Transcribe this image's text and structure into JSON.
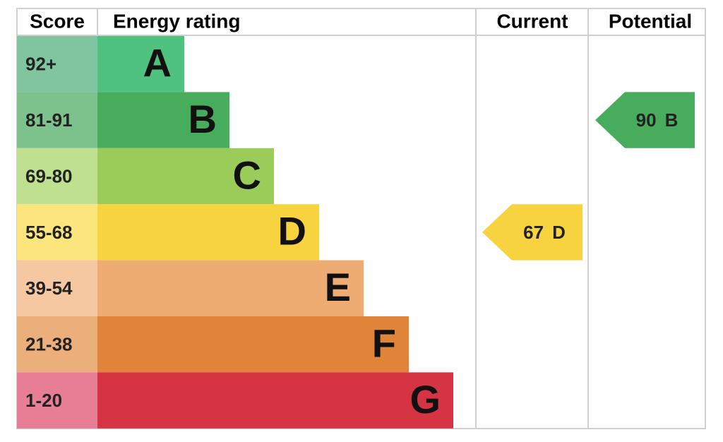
{
  "header": {
    "score": "Score",
    "rating": "Energy rating",
    "current": "Current",
    "potential": "Potential"
  },
  "rows": [
    {
      "score": "92+",
      "band": "A",
      "score_color": "#7fc6a0",
      "color": "#4fc27f"
    },
    {
      "score": "81-91",
      "band": "B",
      "score_color": "#7dc28c",
      "color": "#47ad5c"
    },
    {
      "score": "69-80",
      "band": "C",
      "score_color": "#bfe08f",
      "color": "#9bcb58"
    },
    {
      "score": "55-68",
      "band": "D",
      "score_color": "#fbe57c",
      "color": "#f6d33f"
    },
    {
      "score": "39-54",
      "band": "E",
      "score_color": "#f5c8a2",
      "color": "#efac72"
    },
    {
      "score": "21-38",
      "band": "F",
      "score_color": "#ebaf7c",
      "color": "#e0843a"
    },
    {
      "score": "1-20",
      "band": "G",
      "score_color": "#e87e95",
      "color": "#d63343"
    }
  ],
  "current": {
    "value": "67",
    "band": "D",
    "color": "#f6d33f"
  },
  "potential": {
    "value": "90",
    "band": "B",
    "color": "#47ad5c"
  }
}
